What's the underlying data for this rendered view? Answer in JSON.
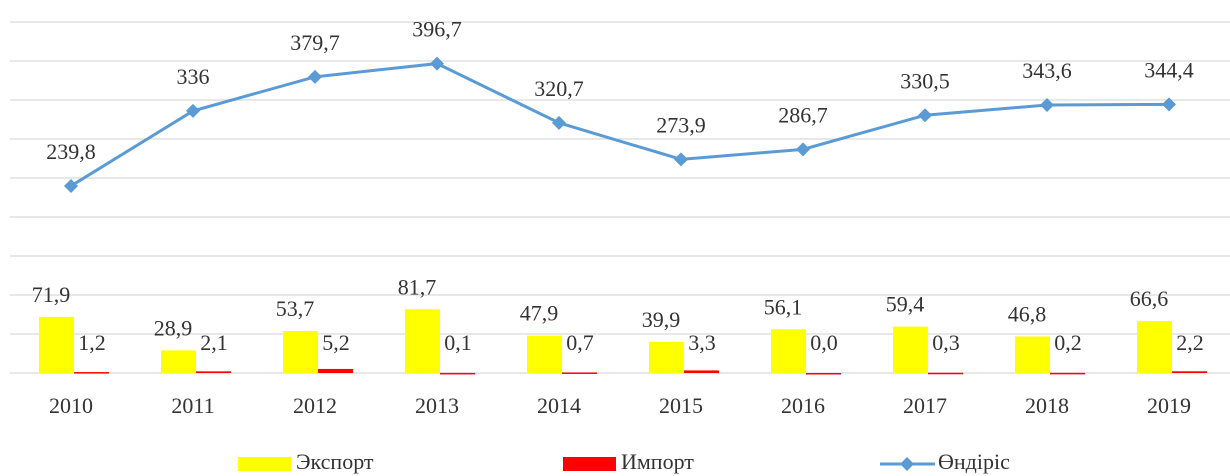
{
  "chart_data": {
    "type": "bar",
    "categories": [
      "2010",
      "2011",
      "2012",
      "2013",
      "2014",
      "2015",
      "2016",
      "2017",
      "2018",
      "2019"
    ],
    "series": [
      {
        "name": "Экспорт",
        "type": "bar",
        "color": "#ffff00",
        "values": [
          71.9,
          28.9,
          53.7,
          81.7,
          47.9,
          39.9,
          56.1,
          59.4,
          46.8,
          66.6
        ],
        "value_labels": [
          "71,9",
          "28,9",
          "53,7",
          "81,7",
          "47,9",
          "39,9",
          "56,1",
          "59,4",
          "46,8",
          "66,6"
        ]
      },
      {
        "name": "Импорт",
        "type": "bar",
        "color": "#ff0000",
        "values": [
          1.2,
          2.1,
          5.2,
          0.1,
          0.7,
          3.3,
          0.0,
          0.3,
          0.2,
          2.2
        ],
        "value_labels": [
          "1,2",
          "2,1",
          "5,2",
          "0,1",
          "0,7",
          "3,3",
          "0,0",
          "0,3",
          "0,2",
          "2,2"
        ]
      },
      {
        "name": "Өндіріс",
        "type": "line",
        "color": "#5b9bd5",
        "values": [
          239.8,
          336,
          379.7,
          396.7,
          320.7,
          273.9,
          286.7,
          330.5,
          343.6,
          344.4
        ],
        "value_labels": [
          "239,8",
          "336",
          "379,7",
          "396,7",
          "320,7",
          "273,9",
          "286,7",
          "330,5",
          "343,6",
          "344,4"
        ]
      }
    ],
    "ylim": [
      0,
      450
    ],
    "yticks": [
      0,
      50,
      100,
      150,
      200,
      250,
      300,
      350,
      400,
      450
    ],
    "grid": true,
    "legend": "bottom"
  }
}
